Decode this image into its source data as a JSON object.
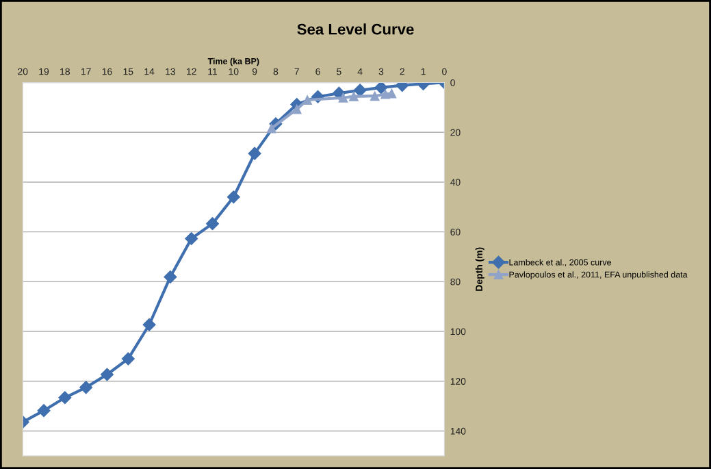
{
  "chart_data": {
    "type": "line",
    "title": "Sea Level Curve",
    "xlabel": "Time (ka BP)",
    "ylabel": "Depth (m)",
    "xlim": [
      20,
      0
    ],
    "xticks": [
      20,
      19,
      18,
      17,
      16,
      15,
      14,
      13,
      12,
      11,
      10,
      9,
      8,
      7,
      6,
      5,
      4,
      3,
      2,
      1,
      0
    ],
    "ylim": [
      150,
      0
    ],
    "yticks": [
      0,
      20,
      40,
      60,
      80,
      100,
      120,
      140
    ],
    "grid": "y",
    "legend": "right",
    "series": [
      {
        "name": "Lambeck et al., 2005 curve",
        "color": "#3f6fae",
        "marker": "diamond",
        "x": [
          20,
          19,
          18,
          17,
          16,
          15,
          14,
          13,
          12,
          11,
          10,
          9,
          8,
          7,
          6,
          5,
          4,
          3,
          2,
          1,
          0
        ],
        "values": [
          136.4,
          131.8,
          126.6,
          122.5,
          117.3,
          111,
          97.3,
          78.1,
          62.7,
          56.7,
          46,
          28.5,
          16.6,
          8.8,
          5.7,
          4.3,
          3.1,
          2.0,
          1.1,
          0.5,
          0
        ]
      },
      {
        "name": "Pavlopoulos et al., 2011, EFA unpublished data",
        "color": "#8fa3c9",
        "marker": "triangle",
        "x": [
          8.2,
          7.0,
          6.5,
          4.8,
          4.3,
          3.3,
          2.8,
          2.5
        ],
        "values": [
          18.4,
          10.7,
          7,
          6.1,
          5.6,
          5.4,
          4.7,
          4.4
        ]
      }
    ]
  }
}
